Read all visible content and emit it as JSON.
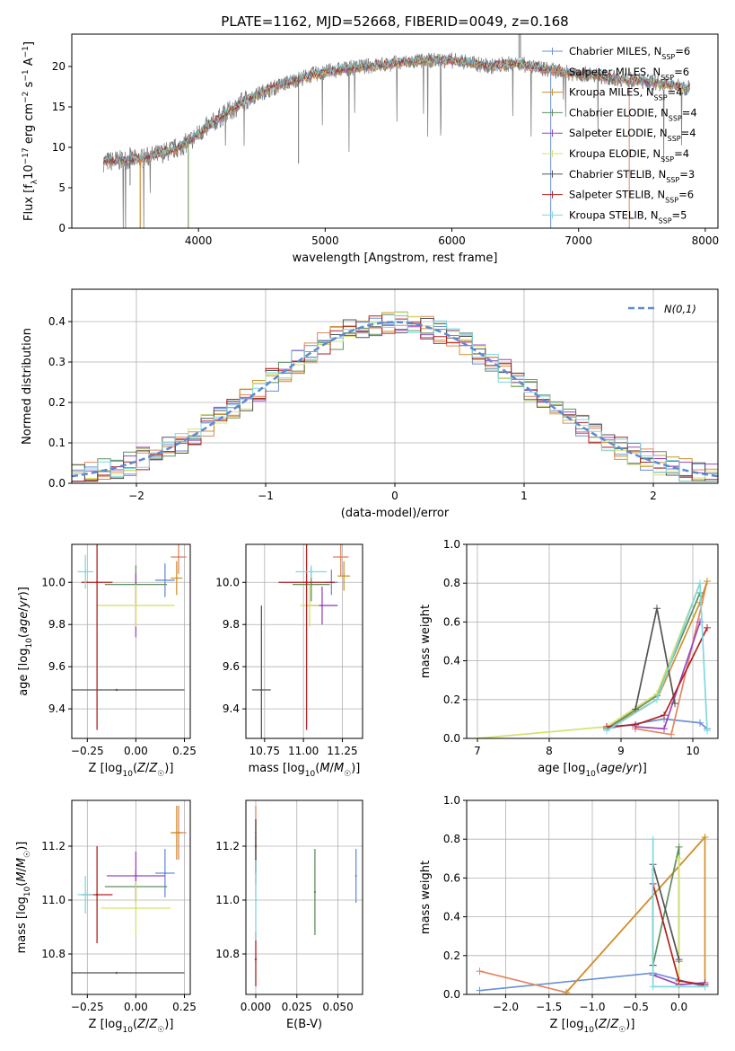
{
  "page_title": "PLATE=1162, MJD=52668, FIBERID=0049, z=0.168",
  "legend_labels": [
    "Chabrier MILES, N_SSP=6",
    "Salpeter MILES, N_SSP=6",
    "Kroupa MILES, N_SSP=4",
    "Chabrier ELODIE, N_SSP=4",
    "Salpeter ELODIE, N_SSP=4",
    "Kroupa ELODIE, N_SSP=4",
    "Chabrier STELIB, N_SSP=3",
    "Salpeter STELIB, N_SSP=6",
    "Kroupa STELIB, N_SSP=5"
  ],
  "colors": [
    "#6a8fd8",
    "#e0875f",
    "#d1912b",
    "#5f8f5f",
    "#9b44c0",
    "#d6e06e",
    "#555555",
    "#b22222",
    "#7fd8e0"
  ],
  "chart_data": [
    {
      "id": "spectrum",
      "type": "line",
      "title": "PLATE=1162, MJD=52668, FIBERID=0049, z=0.168",
      "xlabel": "wavelength [Angstrom, rest frame]",
      "ylabel": "Flux [f_λ 10^-17 erg cm^-2 s^-1 A^-1]",
      "xlim": [
        3000,
        8100
      ],
      "ylim": [
        0,
        24
      ],
      "xticks": [
        4000,
        5000,
        6000,
        7000,
        8000
      ],
      "yticks": [
        0,
        5,
        10,
        15,
        20
      ],
      "grid": false,
      "legend": "right",
      "continuum_x": [
        3250,
        3400,
        3550,
        3700,
        3850,
        3950,
        4050,
        4200,
        4350,
        4500,
        4700,
        4900,
        5100,
        5300,
        5500,
        5700,
        5900,
        6100,
        6300,
        6500,
        6700,
        6900,
        7100,
        7300,
        7500,
        7700,
        7850
      ],
      "continuum_y": [
        8.2,
        8.4,
        8.6,
        9.2,
        10.0,
        11.0,
        12.3,
        14.0,
        15.6,
        16.8,
        18.0,
        19.0,
        19.6,
        20.0,
        20.3,
        20.6,
        20.8,
        20.6,
        20.0,
        20.4,
        19.8,
        19.2,
        19.0,
        18.5,
        18.2,
        17.8,
        17.3
      ],
      "model_cutoff_x": [
        3540,
        3540,
        3920,
        3920,
        6780,
        7400
      ],
      "model_cutoff_series": [
        1,
        2,
        5,
        3,
        0,
        1
      ]
    },
    {
      "id": "residuals",
      "type": "line",
      "xlabel": "(data-model)/error",
      "ylabel": "Normed distribution",
      "xlim": [
        -2.5,
        2.5
      ],
      "ylim": [
        0,
        0.48
      ],
      "xticks": [
        -2,
        -1,
        0,
        1,
        2
      ],
      "yticks": [
        0.0,
        0.1,
        0.2,
        0.3,
        0.4
      ],
      "grid": true,
      "legend": "top-right",
      "legend_label": "N(0,1)"
    },
    {
      "id": "age-vs-Z",
      "type": "scatter",
      "xlabel": "Z [log10(Z/Z☉)]",
      "ylabel": "age [log10(age/yr)]",
      "xlim": [
        -0.33,
        0.28
      ],
      "ylim": [
        9.26,
        10.18
      ],
      "xticks": [
        -0.25,
        0.0,
        0.25
      ],
      "yticks": [
        9.4,
        9.6,
        9.8,
        10.0
      ],
      "grid": true,
      "points": [
        {
          "x": 0.15,
          "y": 10.01,
          "xerr": 0.05,
          "yerr": 0.08
        },
        {
          "x": 0.22,
          "y": 10.12,
          "xerr": 0.04,
          "yerr": 0.08
        },
        {
          "x": 0.21,
          "y": 10.02,
          "xerr": 0.03,
          "yerr": 0.08
        },
        {
          "x": 0.0,
          "y": 9.99,
          "xerr": 0.16,
          "yerr": 0.09
        },
        {
          "x": 0.0,
          "y": 9.89,
          "xerr": 0.0,
          "yerr": 0.15
        },
        {
          "x": 0.0,
          "y": 9.89,
          "xerr": 0.2,
          "yerr": 0.1
        },
        {
          "x": -0.1,
          "y": 9.49,
          "xerr": 0.35,
          "yerr": 0.0
        },
        {
          "x": -0.2,
          "y": 10.0,
          "xerr": 0.08,
          "yerr": 0.7
        },
        {
          "x": -0.26,
          "y": 10.05,
          "xerr": 0.04,
          "yerr": 0.08
        }
      ]
    },
    {
      "id": "age-vs-mass",
      "type": "scatter",
      "xlabel": "mass [log10(M/M☉)]",
      "ylabel": "",
      "xlim": [
        10.63,
        11.38
      ],
      "ylim": [
        9.26,
        10.18
      ],
      "xticks": [
        10.75,
        11.0,
        11.25
      ],
      "yticks": [
        9.4,
        9.6,
        9.8,
        10.0
      ],
      "grid": true,
      "points": [
        {
          "x": 11.18,
          "y": 10.0,
          "xerr": 0.04,
          "yerr": 0.06
        },
        {
          "x": 11.24,
          "y": 10.12,
          "xerr": 0.05,
          "yerr": 0.09
        },
        {
          "x": 11.26,
          "y": 10.03,
          "xerr": 0.04,
          "yerr": 0.07
        },
        {
          "x": 11.05,
          "y": 9.99,
          "xerr": 0.12,
          "yerr": 0.08
        },
        {
          "x": 11.12,
          "y": 9.89,
          "xerr": 0.1,
          "yerr": 0.09
        },
        {
          "x": 11.04,
          "y": 9.89,
          "xerr": 0.06,
          "yerr": 0.1
        },
        {
          "x": 10.73,
          "y": 9.49,
          "xerr": 0.06,
          "yerr": 0.4
        },
        {
          "x": 11.02,
          "y": 10.0,
          "xerr": 0.18,
          "yerr": 0.7
        },
        {
          "x": 11.05,
          "y": 10.05,
          "xerr": 0.1,
          "yerr": 0.03
        }
      ]
    },
    {
      "id": "weight-vs-age",
      "type": "line",
      "xlabel": "age [log10(age/yr)]",
      "ylabel": "mass weight",
      "xlim": [
        6.85,
        10.35
      ],
      "ylim": [
        0.0,
        1.0
      ],
      "xticks": [
        7,
        8,
        9,
        10
      ],
      "yticks": [
        0.0,
        0.2,
        0.4,
        0.6,
        0.8,
        1.0
      ],
      "grid": true,
      "series": [
        {
          "x": [
            8.8,
            9.6,
            10.1,
            10.2
          ],
          "y": [
            0.05,
            0.1,
            0.08,
            0.05
          ]
        },
        {
          "x": [
            9.2,
            9.7,
            10.2
          ],
          "y": [
            0.05,
            0.02,
            0.81
          ]
        },
        {
          "x": [
            8.8,
            9.5,
            10.1,
            10.2
          ],
          "y": [
            0.05,
            0.2,
            0.7,
            0.81
          ]
        },
        {
          "x": [
            8.8,
            9.5,
            10.1
          ],
          "y": [
            0.05,
            0.22,
            0.75
          ]
        },
        {
          "x": [
            9.2,
            9.6,
            10.1
          ],
          "y": [
            0.06,
            0.05,
            0.6
          ]
        },
        {
          "x": [
            7.0,
            8.8,
            9.5,
            10.1
          ],
          "y": [
            0.0,
            0.06,
            0.23,
            0.8
          ]
        },
        {
          "x": [
            9.2,
            9.5,
            9.75
          ],
          "y": [
            0.15,
            0.67,
            0.18
          ]
        },
        {
          "x": [
            8.8,
            9.2,
            9.6,
            10.2
          ],
          "y": [
            0.06,
            0.07,
            0.12,
            0.57
          ]
        },
        {
          "x": [
            8.8,
            9.5,
            10.1,
            10.2
          ],
          "y": [
            0.04,
            0.2,
            0.8,
            0.04
          ]
        }
      ]
    },
    {
      "id": "mass-vs-Z",
      "type": "scatter",
      "xlabel": "Z [log10(Z/Z☉)]",
      "ylabel": "mass [log10(M/M☉)]",
      "xlim": [
        -0.33,
        0.28
      ],
      "ylim": [
        10.65,
        11.37
      ],
      "xticks": [
        -0.25,
        0.0,
        0.25
      ],
      "yticks": [
        10.8,
        11.0,
        11.2
      ],
      "grid": true,
      "points": [
        {
          "x": 0.15,
          "y": 11.1,
          "xerr": 0.05,
          "yerr": 0.09
        },
        {
          "x": 0.22,
          "y": 11.25,
          "xerr": 0.04,
          "yerr": 0.1
        },
        {
          "x": 0.21,
          "y": 11.25,
          "xerr": 0.03,
          "yerr": 0.1
        },
        {
          "x": 0.0,
          "y": 11.05,
          "xerr": 0.16,
          "yerr": 0.06
        },
        {
          "x": 0.0,
          "y": 11.09,
          "xerr": 0.15,
          "yerr": 0.09
        },
        {
          "x": 0.0,
          "y": 10.97,
          "xerr": 0.18,
          "yerr": 0.1
        },
        {
          "x": -0.1,
          "y": 10.73,
          "xerr": 0.35,
          "yerr": 0.0
        },
        {
          "x": -0.2,
          "y": 11.02,
          "xerr": 0.08,
          "yerr": 0.18
        },
        {
          "x": -0.26,
          "y": 11.02,
          "xerr": 0.04,
          "yerr": 0.07
        }
      ]
    },
    {
      "id": "mass-vs-ebv",
      "type": "scatter",
      "xlabel": "E(B-V)",
      "ylabel": "",
      "xlim": [
        -0.006,
        0.065
      ],
      "ylim": [
        10.65,
        11.37
      ],
      "xticks": [
        0.0,
        0.025,
        0.05
      ],
      "yticks": [
        10.8,
        11.0,
        11.2
      ],
      "grid": true,
      "points": [
        {
          "x": 0.061,
          "y": 11.09,
          "xerr": 0.0,
          "yerr": 0.1
        },
        {
          "x": 0.0,
          "y": 11.25,
          "xerr": 0.0,
          "yerr": 0.1
        },
        {
          "x": 0.0,
          "y": 11.2,
          "xerr": 0.0,
          "yerr": 0.1
        },
        {
          "x": 0.036,
          "y": 11.03,
          "xerr": 0.0,
          "yerr": 0.16
        },
        {
          "x": 0.0,
          "y": 11.15,
          "xerr": 0.0,
          "yerr": 0.09
        },
        {
          "x": 0.0,
          "y": 11.1,
          "xerr": 0.0,
          "yerr": 0.09
        },
        {
          "x": 0.0,
          "y": 11.2,
          "xerr": 0.0,
          "yerr": 0.1
        },
        {
          "x": 0.0,
          "y": 10.78,
          "xerr": 0.0,
          "yerr": 0.1
        },
        {
          "x": 0.0,
          "y": 11.0,
          "xerr": 0.0,
          "yerr": 0.15
        }
      ]
    },
    {
      "id": "weight-vs-Z",
      "type": "line",
      "xlabel": "Z [log10(Z/Z☉)]",
      "ylabel": "mass weight",
      "xlim": [
        -2.45,
        0.45
      ],
      "ylim": [
        0.0,
        1.0
      ],
      "xticks": [
        -2.0,
        -1.5,
        -1.0,
        -0.5,
        0.0
      ],
      "yticks": [
        0.0,
        0.2,
        0.4,
        0.6,
        0.8,
        1.0
      ],
      "grid": true,
      "series": [
        {
          "x": [
            -2.3,
            -0.3,
            0.3
          ],
          "y": [
            0.02,
            0.11,
            0.04
          ]
        },
        {
          "x": [
            -2.3,
            -1.3,
            0.3
          ],
          "y": [
            0.12,
            0.01,
            0.81
          ]
        },
        {
          "x": [
            -1.3,
            0.3,
            0.3
          ],
          "y": [
            0.01,
            0.81,
            0.05
          ]
        },
        {
          "x": [
            -0.3,
            0.0,
            0.0
          ],
          "y": [
            0.15,
            0.76,
            0.17
          ]
        },
        {
          "x": [
            -0.3,
            0.0,
            0.3
          ],
          "y": [
            0.1,
            0.05,
            0.06
          ]
        },
        {
          "x": [
            0.0,
            0.0
          ],
          "y": [
            0.7,
            0.06
          ]
        },
        {
          "x": [
            -0.3,
            -0.3,
            0.0
          ],
          "y": [
            0.15,
            0.67,
            0.18
          ]
        },
        {
          "x": [
            -0.3,
            0.0,
            0.3
          ],
          "y": [
            0.57,
            0.07,
            0.05
          ]
        },
        {
          "x": [
            -0.3,
            -0.3,
            0.3
          ],
          "y": [
            0.8,
            0.04,
            0.04
          ]
        }
      ]
    }
  ]
}
